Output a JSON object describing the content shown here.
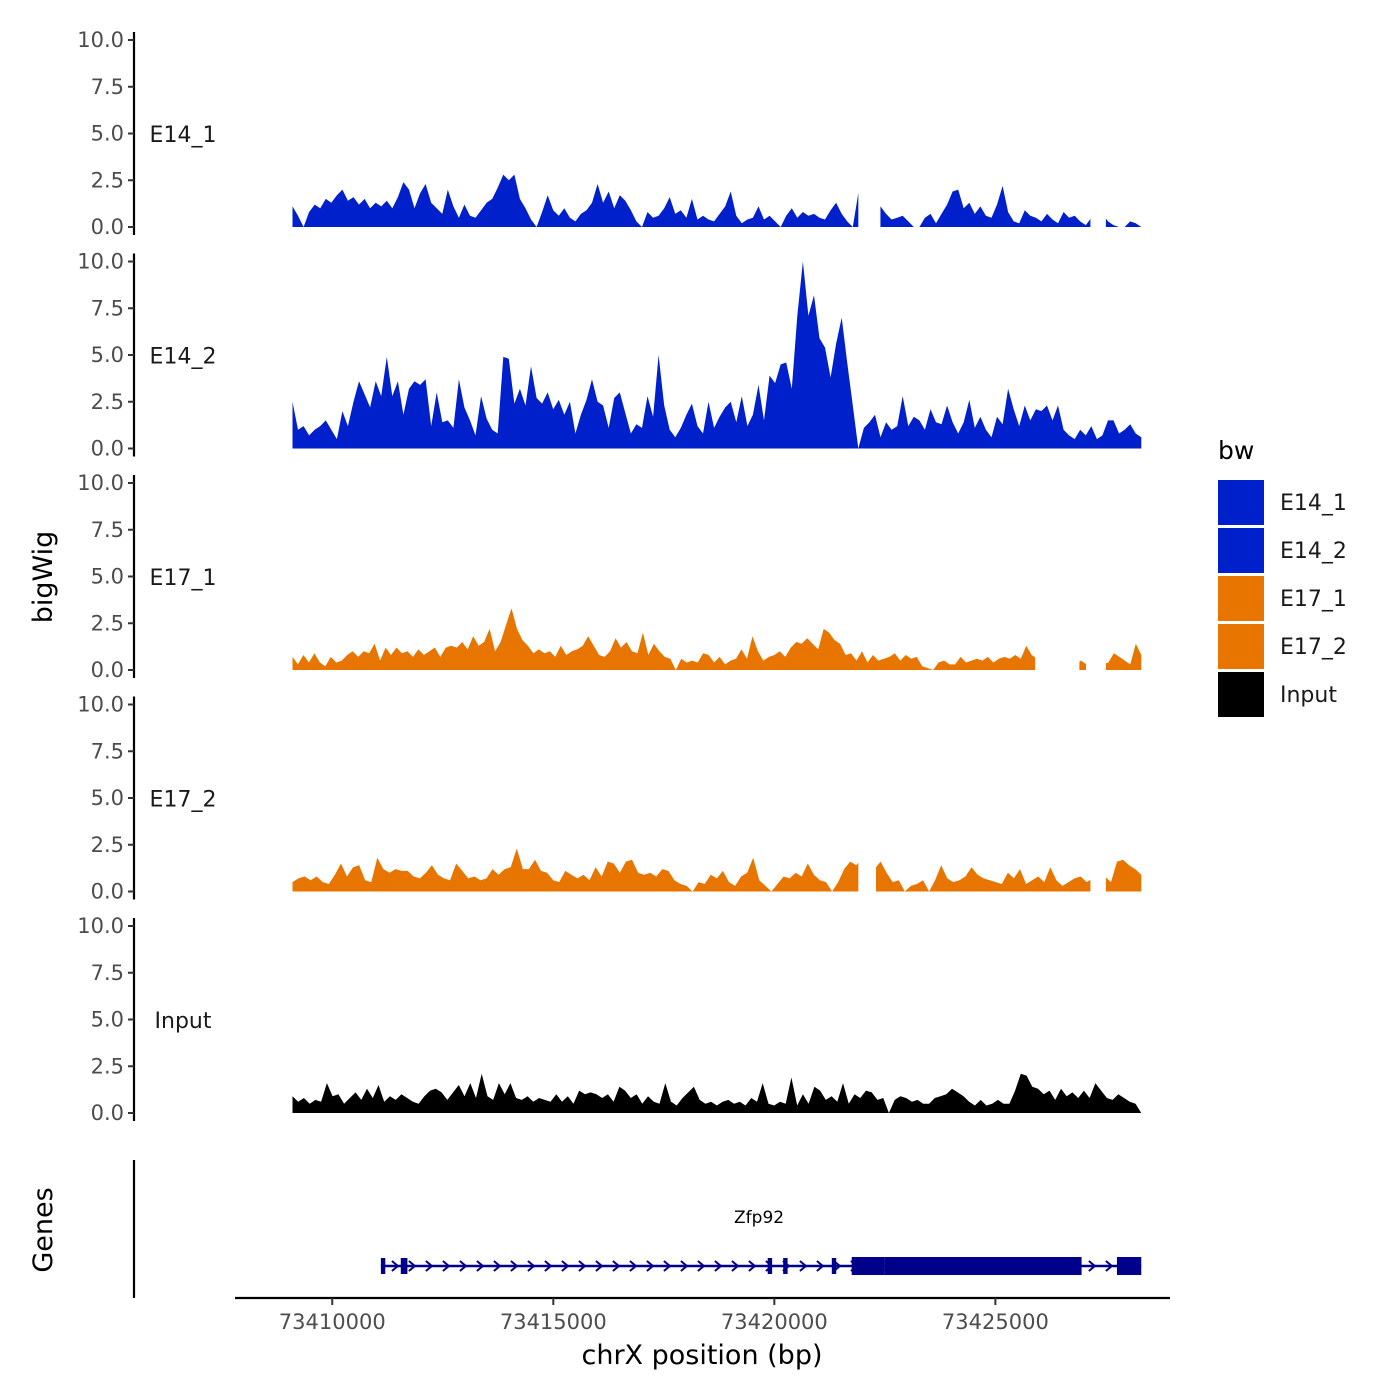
{
  "chart_data": {
    "type": "area",
    "title": "",
    "ylabel": "bigWig",
    "xlabel": "chrX position (bp)",
    "ylim": [
      0,
      10
    ],
    "y_ticks": [
      "0.0",
      "2.5",
      "5.0",
      "7.5",
      "10.0"
    ],
    "xlim": [
      73407800,
      73428950
    ],
    "x_ticks": [
      73410000,
      73415000,
      73420000,
      73425000
    ],
    "x_tick_labels": [
      "73410000",
      "73415000",
      "73420000",
      "73425000"
    ],
    "x_start": 73409100,
    "x_end": 73428300,
    "legend": {
      "title": "bw",
      "position": "right",
      "entries": [
        {
          "label": "E14_1",
          "color": "#0020cc"
        },
        {
          "label": "E14_2",
          "color": "#0020cc"
        },
        {
          "label": "E17_1",
          "color": "#e87500"
        },
        {
          "label": "E17_2",
          "color": "#e87500"
        },
        {
          "label": "Input",
          "color": "#000000"
        }
      ]
    },
    "series": [
      {
        "name": "E14_1",
        "color": "#0020cc",
        "values": [
          1.1,
          0.6,
          0.0,
          0.8,
          1.2,
          1.0,
          1.5,
          1.3,
          1.7,
          2.0,
          1.4,
          1.6,
          1.2,
          1.5,
          1.0,
          1.3,
          1.1,
          1.4,
          1.0,
          1.6,
          2.4,
          2.0,
          1.0,
          1.8,
          2.3,
          1.3,
          1.0,
          0.7,
          2.0,
          1.1,
          0.5,
          1.2,
          0.6,
          0.5,
          0.9,
          1.3,
          1.5,
          2.1,
          2.8,
          2.5,
          2.8,
          1.5,
          1.0,
          0.4,
          0.0,
          0.8,
          1.7,
          0.9,
          0.6,
          1.0,
          0.5,
          0.3,
          0.7,
          0.9,
          1.3,
          2.3,
          1.3,
          1.9,
          1.0,
          1.7,
          1.4,
          0.9,
          0.3,
          0.0,
          0.8,
          0.5,
          0.6,
          1.0,
          1.6,
          0.7,
          0.9,
          0.5,
          1.5,
          0.4,
          0.6,
          0.4,
          0.3,
          0.7,
          1.1,
          1.9,
          0.6,
          0.2,
          0.4,
          0.5,
          1.1,
          0.4,
          0.6,
          0.3,
          0.0,
          0.6,
          1.0,
          0.5,
          0.8,
          0.6,
          0.7,
          0.5,
          0.4,
          0.9,
          1.3,
          0.7,
          0.3,
          0.0,
          1.8,
          1.5,
          1.0,
          0.6,
          1.1,
          0.7,
          0.4,
          0.5,
          0.6,
          0.3,
          0.0,
          0.0,
          0.5,
          0.7,
          0.2,
          0.7,
          1.2,
          1.9,
          2.0,
          1.0,
          1.3,
          0.7,
          1.1,
          0.6,
          0.5,
          1.2,
          2.2,
          0.8,
          0.3,
          0.2,
          0.9,
          0.6,
          0.5,
          0.3,
          0.7,
          0.4,
          0.2,
          0.8,
          0.5,
          0.6,
          0.3,
          0.1,
          0.5,
          0.4,
          0.7,
          0.3,
          0.1,
          0.0,
          0.0,
          0.3,
          0.2,
          0.0
        ],
        "gaps": [
          [
            73421900,
            73422400
          ],
          [
            73427150,
            73427500
          ]
        ]
      },
      {
        "name": "E14_2",
        "color": "#0020cc",
        "values": [
          2.5,
          1.0,
          1.2,
          0.7,
          1.0,
          1.2,
          1.5,
          1.0,
          0.5,
          2.0,
          1.2,
          2.5,
          3.6,
          2.9,
          2.2,
          3.6,
          2.8,
          4.9,
          2.8,
          3.6,
          1.8,
          3.2,
          3.6,
          3.4,
          3.7,
          1.2,
          3.0,
          1.4,
          1.5,
          1.1,
          3.7,
          2.2,
          1.5,
          0.7,
          2.8,
          1.6,
          1.0,
          0.8,
          4.9,
          4.8,
          2.4,
          3.2,
          2.3,
          4.4,
          2.7,
          2.4,
          3.0,
          2.1,
          2.6,
          1.8,
          2.5,
          0.8,
          1.8,
          2.6,
          3.7,
          2.5,
          2.3,
          1.1,
          2.7,
          3.0,
          1.9,
          0.8,
          1.3,
          1.1,
          2.8,
          1.7,
          5.0,
          2.3,
          1.0,
          0.6,
          1.1,
          1.8,
          2.4,
          1.2,
          0.8,
          2.5,
          1.1,
          1.7,
          2.2,
          2.5,
          1.4,
          2.8,
          1.2,
          1.8,
          3.4,
          1.5,
          3.9,
          3.5,
          4.5,
          4.6,
          3.2,
          7.1,
          10.0,
          7.1,
          8.2,
          5.9,
          5.4,
          3.8,
          5.6,
          7.0,
          4.6,
          2.3,
          0.0,
          1.1,
          1.4,
          1.8,
          0.6,
          1.4,
          1.0,
          1.2,
          2.8,
          1.2,
          1.7,
          1.5,
          1.0,
          2.1,
          1.4,
          1.3,
          2.3,
          1.4,
          0.8,
          1.4,
          2.6,
          1.1,
          1.7,
          1.0,
          0.6,
          1.7,
          1.3,
          3.2,
          2.1,
          1.2,
          2.3,
          1.5,
          2.1,
          2.0,
          2.3,
          1.5,
          2.3,
          1.0,
          0.7,
          0.5,
          1.0,
          0.7,
          1.2,
          0.5,
          0.7,
          1.5,
          1.5,
          0.8,
          1.0,
          1.3,
          0.8,
          0.6
        ]
      },
      {
        "name": "E17_1",
        "color": "#e87500",
        "values": [
          0.7,
          0.3,
          0.8,
          0.4,
          0.9,
          0.4,
          0.2,
          0.7,
          0.4,
          0.5,
          0.8,
          1.0,
          0.7,
          1.0,
          0.9,
          1.4,
          0.5,
          1.2,
          0.8,
          1.2,
          0.9,
          1.0,
          0.7,
          1.1,
          0.8,
          1.0,
          1.2,
          0.7,
          1.2,
          1.3,
          1.2,
          1.5,
          1.1,
          1.8,
          1.3,
          1.5,
          2.2,
          1.0,
          1.5,
          2.4,
          3.3,
          2.2,
          1.6,
          1.3,
          0.9,
          1.1,
          0.9,
          1.0,
          0.7,
          1.3,
          0.8,
          1.0,
          1.1,
          1.3,
          1.8,
          1.3,
          0.8,
          0.7,
          1.0,
          1.7,
          1.2,
          1.5,
          1.0,
          0.9,
          2.0,
          0.8,
          1.4,
          1.0,
          0.7,
          0.6,
          0.0,
          0.6,
          0.4,
          0.5,
          0.4,
          0.9,
          0.8,
          0.4,
          0.7,
          0.3,
          0.5,
          0.6,
          1.1,
          0.6,
          1.8,
          1.0,
          0.5,
          0.7,
          0.8,
          1.0,
          0.7,
          1.2,
          1.5,
          1.4,
          1.7,
          1.4,
          1.1,
          2.2,
          2.0,
          1.6,
          1.4,
          0.8,
          0.9,
          0.5,
          1.0,
          0.4,
          0.8,
          0.5,
          0.6,
          0.7,
          0.9,
          0.5,
          0.8,
          0.6,
          0.7,
          0.2,
          0.1,
          0.0,
          0.4,
          0.5,
          0.3,
          0.3,
          0.7,
          0.4,
          0.5,
          0.6,
          0.5,
          0.7,
          0.4,
          0.6,
          0.7,
          0.6,
          0.8,
          0.6,
          1.3,
          0.8,
          0.6,
          0.7,
          0.5,
          0.7,
          0.6,
          0.9,
          0.6,
          0.3,
          0.5,
          0.3,
          0.6,
          0.5,
          0.3,
          0.4,
          0.9,
          0.7,
          0.5,
          0.3,
          1.4,
          0.8
        ],
        "gaps": [
          [
            73425900,
            73426900
          ],
          [
            73427050,
            73427500
          ]
        ]
      },
      {
        "name": "E17_2",
        "color": "#e87500",
        "values": [
          0.5,
          0.7,
          0.8,
          0.6,
          0.8,
          0.5,
          0.4,
          0.9,
          1.5,
          0.8,
          1.3,
          1.4,
          0.6,
          0.5,
          1.8,
          1.2,
          1.0,
          1.2,
          1.1,
          1.1,
          0.8,
          0.7,
          1.0,
          1.4,
          0.9,
          0.7,
          0.6,
          1.5,
          1.1,
          0.7,
          0.8,
          0.6,
          0.7,
          1.2,
          0.9,
          1.2,
          1.3,
          2.3,
          1.2,
          1.2,
          1.7,
          1.1,
          1.0,
          0.6,
          0.5,
          1.1,
          0.9,
          0.7,
          0.9,
          0.6,
          1.3,
          0.8,
          1.6,
          1.5,
          1.0,
          1.6,
          1.7,
          1.0,
          0.9,
          1.0,
          0.8,
          1.2,
          1.1,
          0.6,
          0.4,
          0.3,
          0.0,
          0.5,
          0.4,
          0.9,
          0.7,
          1.1,
          0.5,
          0.3,
          0.8,
          1.0,
          1.8,
          0.6,
          0.3,
          0.0,
          0.4,
          0.8,
          0.7,
          1.0,
          0.8,
          1.5,
          0.9,
          0.6,
          0.5,
          0.0,
          0.5,
          1.2,
          1.6,
          1.4,
          1.8,
          1.7,
          1.2,
          1.6,
          1.0,
          0.5,
          0.6,
          0.0,
          0.3,
          0.4,
          0.6,
          0.0,
          0.6,
          1.4,
          0.7,
          0.5,
          0.6,
          0.8,
          1.3,
          0.9,
          0.7,
          0.6,
          0.5,
          0.4,
          1.0,
          0.7,
          1.2,
          0.4,
          0.6,
          0.8,
          0.5,
          1.3,
          0.6,
          0.3,
          0.5,
          0.7,
          0.8,
          0.5,
          0.7,
          0.6,
          0.8,
          0.5,
          1.6,
          1.7,
          1.4,
          1.2,
          0.9
        ],
        "gaps": [
          [
            73421900,
            73422300
          ],
          [
            73427150,
            73427500
          ]
        ]
      },
      {
        "name": "Input",
        "color": "#000000",
        "values": [
          0.9,
          0.6,
          0.8,
          0.5,
          0.7,
          0.6,
          1.6,
          0.9,
          1.0,
          0.5,
          0.8,
          1.1,
          0.7,
          1.3,
          0.8,
          1.5,
          0.6,
          0.9,
          0.7,
          1.0,
          0.8,
          0.6,
          0.5,
          0.9,
          1.2,
          1.3,
          1.1,
          0.7,
          1.1,
          1.5,
          0.9,
          1.6,
          0.8,
          2.1,
          0.9,
          0.7,
          1.6,
          1.0,
          1.6,
          0.8,
          0.7,
          0.9,
          0.6,
          0.8,
          0.7,
          0.6,
          1.0,
          0.6,
          0.9,
          0.5,
          1.2,
          1.0,
          1.1,
          1.0,
          0.8,
          1.0,
          0.6,
          1.4,
          1.2,
          0.8,
          1.0,
          0.5,
          0.9,
          0.6,
          0.5,
          1.6,
          0.6,
          0.4,
          0.8,
          1.1,
          1.4,
          0.7,
          0.5,
          0.6,
          0.4,
          0.6,
          0.7,
          0.5,
          0.6,
          0.4,
          0.8,
          0.6,
          1.6,
          0.5,
          0.4,
          0.6,
          0.5,
          1.9,
          0.4,
          1.0,
          0.5,
          1.4,
          1.2,
          0.7,
          0.9,
          0.6,
          1.6,
          0.5,
          1.0,
          0.8,
          1.2,
          1.1,
          0.7,
          0.8,
          0.0,
          0.7,
          0.9,
          0.8,
          0.6,
          0.7,
          0.5,
          0.5,
          0.8,
          0.9,
          1.0,
          1.3,
          1.1,
          0.9,
          0.6,
          0.4,
          0.7,
          0.4,
          0.5,
          0.7,
          0.5,
          0.5,
          1.2,
          2.1,
          2.0,
          1.4,
          1.3,
          1.0,
          1.2,
          0.7,
          1.3,
          0.9,
          1.1,
          0.8,
          1.2,
          0.8,
          1.6,
          1.2,
          0.8,
          0.7,
          1.0,
          0.8,
          0.6,
          0.5,
          0.0
        ]
      }
    ],
    "gene_track": {
      "ylabel": "Genes",
      "gene": "Zfp92",
      "strand": "+",
      "color": "#00008b",
      "start": 73411100,
      "end": 73428300,
      "utr_exons": [
        [
          73411100,
          73411200
        ],
        [
          73411550,
          73411700
        ],
        [
          73419850,
          73419950
        ],
        [
          73420200,
          73420300
        ],
        [
          73421300,
          73421400
        ]
      ],
      "cds_exons": [
        [
          73421750,
          73422500
        ],
        [
          73422500,
          73426950
        ],
        [
          73427750,
          73428300
        ]
      ]
    }
  }
}
